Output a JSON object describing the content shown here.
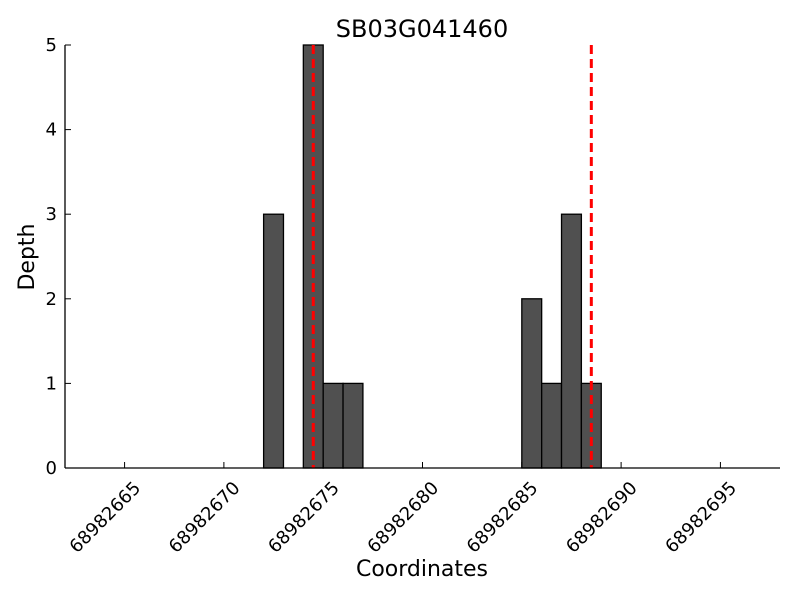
{
  "chart_data": {
    "type": "bar",
    "title": "SB03G041460",
    "xlabel": "Coordinates",
    "ylabel": "Depth",
    "xlim": [
      68982662,
      68982698
    ],
    "ylim": [
      0,
      5
    ],
    "x_ticks": [
      68982665,
      68982670,
      68982675,
      68982680,
      68982685,
      68982690,
      68982695
    ],
    "y_ticks": [
      0,
      1,
      2,
      3,
      4,
      5
    ],
    "bins": [
      {
        "x": 68982672,
        "depth": 3
      },
      {
        "x": 68982674,
        "depth": 5
      },
      {
        "x": 68982675,
        "depth": 1
      },
      {
        "x": 68982676,
        "depth": 1
      },
      {
        "x": 68982685,
        "depth": 2
      },
      {
        "x": 68982686,
        "depth": 1
      },
      {
        "x": 68982687,
        "depth": 3
      },
      {
        "x": 68982688,
        "depth": 1
      }
    ],
    "bin_width": 1,
    "vertical_lines": [
      68982674.5,
      68982688.5
    ],
    "colors": {
      "bar_fill": "#505050",
      "bar_edge": "#000000",
      "vline": "#ff0000"
    },
    "grid": false,
    "legend": "none"
  }
}
